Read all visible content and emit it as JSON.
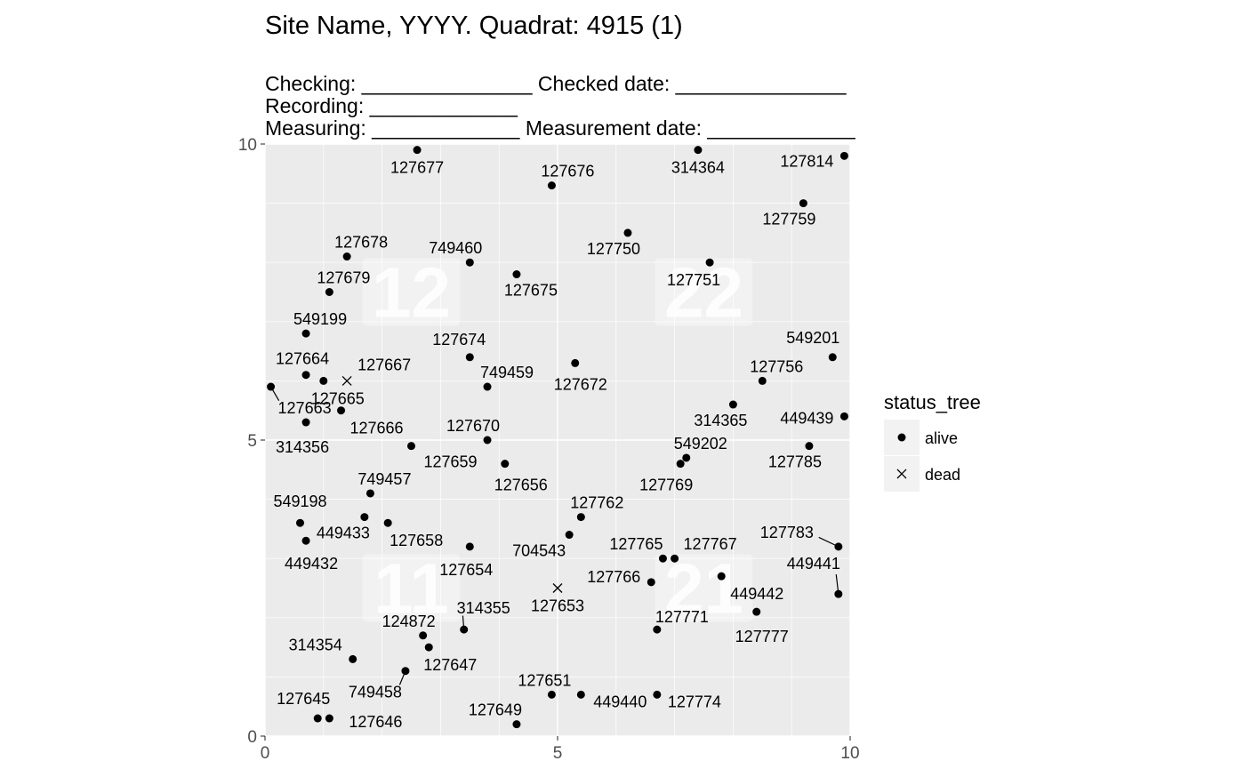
{
  "chart_data": {
    "type": "scatter",
    "title": "Site Name, YYYY. Quadrat: 4915 (1)",
    "subtitle_lines": [
      "Checking: _______________ Checked date: _______________",
      "Recording: _____________",
      "Measuring: _____________ Measurement date: _____________"
    ],
    "xlim": [
      0,
      10
    ],
    "ylim": [
      0,
      10
    ],
    "x_ticks": [
      "0",
      "5",
      "10"
    ],
    "y_ticks": [
      "0",
      "5",
      "10"
    ],
    "grid": true,
    "legend": {
      "title": "status_tree",
      "position": "right",
      "entries": [
        {
          "label": "alive",
          "shape": "dot"
        },
        {
          "label": "dead",
          "shape": "cross"
        }
      ]
    },
    "quadrant_labels": [
      {
        "text": "12",
        "x": 2.5,
        "y": 7.5
      },
      {
        "text": "22",
        "x": 7.5,
        "y": 7.5
      },
      {
        "text": "11",
        "x": 2.5,
        "y": 2.5
      },
      {
        "text": "21",
        "x": 7.5,
        "y": 2.5
      }
    ],
    "points": [
      {
        "tag": "127677",
        "x": 2.6,
        "y": 9.9,
        "status": "alive",
        "dx": 0,
        "dy": 26
      },
      {
        "tag": "127676",
        "x": 4.9,
        "y": 9.3,
        "status": "alive",
        "dx": 18,
        "dy": -10
      },
      {
        "tag": "314364",
        "x": 7.4,
        "y": 9.9,
        "status": "alive",
        "dx": 0,
        "dy": 26
      },
      {
        "tag": "127814",
        "x": 9.9,
        "y": 9.8,
        "status": "alive",
        "dx": -42,
        "dy": 12
      },
      {
        "tag": "127759",
        "x": 9.2,
        "y": 9.0,
        "status": "alive",
        "dx": -16,
        "dy": 24
      },
      {
        "tag": "127750",
        "x": 6.2,
        "y": 8.5,
        "status": "alive",
        "dx": -16,
        "dy": 24
      },
      {
        "tag": "127678",
        "x": 1.4,
        "y": 8.1,
        "status": "alive",
        "dx": 16,
        "dy": -10
      },
      {
        "tag": "749460",
        "x": 3.5,
        "y": 8.0,
        "status": "alive",
        "dx": -16,
        "dy": -10
      },
      {
        "tag": "127751",
        "x": 7.6,
        "y": 8.0,
        "status": "alive",
        "dx": -18,
        "dy": 26
      },
      {
        "tag": "127675",
        "x": 4.3,
        "y": 7.8,
        "status": "alive",
        "dx": 16,
        "dy": 24
      },
      {
        "tag": "127679",
        "x": 1.1,
        "y": 7.5,
        "status": "alive",
        "dx": 16,
        "dy": -10
      },
      {
        "tag": "549199",
        "x": 0.7,
        "y": 6.8,
        "status": "alive",
        "dx": 16,
        "dy": -10
      },
      {
        "tag": "127674",
        "x": 3.5,
        "y": 6.4,
        "status": "alive",
        "dx": -12,
        "dy": -14
      },
      {
        "tag": "549201",
        "x": 9.7,
        "y": 6.4,
        "status": "alive",
        "dx": -22,
        "dy": -16
      },
      {
        "tag": "127664",
        "x": 0.7,
        "y": 6.1,
        "status": "alive",
        "dx": -4,
        "dy": -12
      },
      {
        "tag": "127667",
        "x": 1.4,
        "y": 6.0,
        "status": "dead",
        "dx": 42,
        "dy": -12
      },
      {
        "tag": "127672",
        "x": 5.3,
        "y": 6.3,
        "status": "alive",
        "dx": 6,
        "dy": 30
      },
      {
        "tag": "127756",
        "x": 8.5,
        "y": 6.0,
        "status": "alive",
        "dx": 16,
        "dy": -10
      },
      {
        "tag": "749459",
        "x": 3.8,
        "y": 5.9,
        "status": "alive",
        "dx": 22,
        "dy": -10
      },
      {
        "tag": "127663",
        "x": 0.1,
        "y": 5.9,
        "status": "alive",
        "dx": 38,
        "dy": 30,
        "line": true
      },
      {
        "tag": "127665",
        "x": 1.0,
        "y": 6.0,
        "status": "alive",
        "dx": 16,
        "dy": 26
      },
      {
        "tag": "314365",
        "x": 8.0,
        "y": 5.6,
        "status": "alive",
        "dx": -14,
        "dy": 24
      },
      {
        "tag": "449439",
        "x": 9.9,
        "y": 5.4,
        "status": "alive",
        "dx": -42,
        "dy": 8
      },
      {
        "tag": "314356",
        "x": 0.7,
        "y": 5.3,
        "status": "alive",
        "dx": -4,
        "dy": 34
      },
      {
        "tag": "127666",
        "x": 1.3,
        "y": 5.5,
        "status": "alive",
        "dx": 40,
        "dy": 26
      },
      {
        "tag": "127670",
        "x": 3.8,
        "y": 5.0,
        "status": "alive",
        "dx": -16,
        "dy": -10
      },
      {
        "tag": "127659",
        "x": 2.5,
        "y": 4.9,
        "status": "alive",
        "dx": 44,
        "dy": 24
      },
      {
        "tag": "549202",
        "x": 7.2,
        "y": 4.7,
        "status": "alive",
        "dx": 16,
        "dy": -10
      },
      {
        "tag": "127785",
        "x": 9.3,
        "y": 4.9,
        "status": "alive",
        "dx": -16,
        "dy": 24
      },
      {
        "tag": "127656",
        "x": 4.1,
        "y": 4.6,
        "status": "alive",
        "dx": 18,
        "dy": 30
      },
      {
        "tag": "127769",
        "x": 7.1,
        "y": 4.6,
        "status": "alive",
        "dx": -16,
        "dy": 30
      },
      {
        "tag": "749457",
        "x": 1.8,
        "y": 4.1,
        "status": "alive",
        "dx": 16,
        "dy": -10
      },
      {
        "tag": "127762",
        "x": 5.4,
        "y": 3.7,
        "status": "alive",
        "dx": 18,
        "dy": -10
      },
      {
        "tag": "549198",
        "x": 0.6,
        "y": 3.6,
        "status": "alive",
        "dx": 0,
        "dy": -18
      },
      {
        "tag": "449433",
        "x": 1.7,
        "y": 3.7,
        "status": "alive",
        "dx": -24,
        "dy": 24
      },
      {
        "tag": "127658",
        "x": 2.1,
        "y": 3.6,
        "status": "alive",
        "dx": 32,
        "dy": 26
      },
      {
        "tag": "704543",
        "x": 5.2,
        "y": 3.4,
        "status": "alive",
        "dx": -34,
        "dy": 24
      },
      {
        "tag": "127783",
        "x": 9.8,
        "y": 3.2,
        "status": "alive",
        "dx": -58,
        "dy": -10,
        "line": true
      },
      {
        "tag": "449432",
        "x": 0.7,
        "y": 3.3,
        "status": "alive",
        "dx": 6,
        "dy": 32
      },
      {
        "tag": "127654",
        "x": 3.5,
        "y": 3.2,
        "status": "alive",
        "dx": -4,
        "dy": 32
      },
      {
        "tag": "127765",
        "x": 6.8,
        "y": 3.0,
        "status": "alive",
        "dx": -30,
        "dy": -10
      },
      {
        "tag": "127767",
        "x": 7.0,
        "y": 3.0,
        "status": "alive",
        "dx": 40,
        "dy": -10
      },
      {
        "tag": "449441",
        "x": 9.8,
        "y": 2.4,
        "status": "alive",
        "dx": -28,
        "dy": -28,
        "line": true
      },
      {
        "tag": "127766",
        "x": 6.6,
        "y": 2.6,
        "status": "alive",
        "dx": -42,
        "dy": 0
      },
      {
        "tag": "127653",
        "x": 5.0,
        "y": 2.5,
        "status": "dead",
        "dx": 0,
        "dy": 26
      },
      {
        "tag": "449442",
        "x": 7.8,
        "y": 2.7,
        "status": "alive",
        "dx": 40,
        "dy": 26
      },
      {
        "tag": "127777",
        "x": 8.4,
        "y": 2.1,
        "status": "alive",
        "dx": 6,
        "dy": 34
      },
      {
        "tag": "124872",
        "x": 2.7,
        "y": 1.7,
        "status": "alive",
        "dx": -16,
        "dy": -10
      },
      {
        "tag": "314355",
        "x": 3.4,
        "y": 1.8,
        "status": "alive",
        "dx": 22,
        "dy": -18,
        "line": true
      },
      {
        "tag": "127771",
        "x": 6.7,
        "y": 1.8,
        "status": "alive",
        "dx": 28,
        "dy": -8
      },
      {
        "tag": "127647",
        "x": 2.8,
        "y": 1.5,
        "status": "alive",
        "dx": 24,
        "dy": 26
      },
      {
        "tag": "314354",
        "x": 1.5,
        "y": 1.3,
        "status": "alive",
        "dx": -42,
        "dy": -10
      },
      {
        "tag": "749458",
        "x": 2.4,
        "y": 1.1,
        "status": "alive",
        "dx": -34,
        "dy": 30,
        "line": true
      },
      {
        "tag": "127651",
        "x": 4.9,
        "y": 0.7,
        "status": "alive",
        "dx": -8,
        "dy": -10
      },
      {
        "tag": "449440",
        "x": 5.4,
        "y": 0.7,
        "status": "alive",
        "dx": 44,
        "dy": 14
      },
      {
        "tag": "127774",
        "x": 6.7,
        "y": 0.7,
        "status": "alive",
        "dx": 42,
        "dy": 14
      },
      {
        "tag": "127645",
        "x": 0.9,
        "y": 0.3,
        "status": "alive",
        "dx": -16,
        "dy": -16
      },
      {
        "tag": "127646",
        "x": 1.1,
        "y": 0.3,
        "status": "alive",
        "dx": 52,
        "dy": 10
      },
      {
        "tag": "127649",
        "x": 4.3,
        "y": 0.2,
        "status": "alive",
        "dx": -24,
        "dy": -10
      }
    ]
  }
}
